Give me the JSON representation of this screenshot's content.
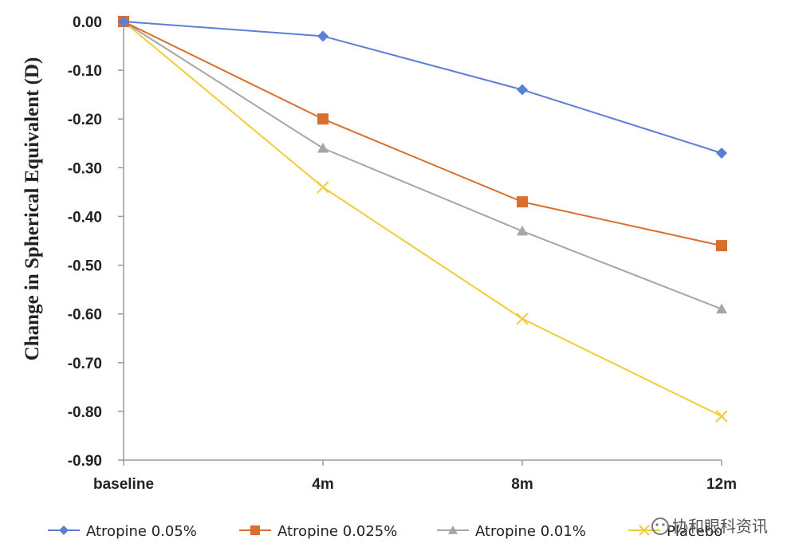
{
  "chart_data": {
    "type": "line",
    "categories": [
      "baseline",
      "4m",
      "8m",
      "12m"
    ],
    "ylabel": "Change in Spherical Equivalent (D)",
    "xlabel": "",
    "ylim": [
      -0.9,
      0.0
    ],
    "yticks": [
      "0.00",
      "-0.10",
      "-0.20",
      "-0.30",
      "-0.40",
      "-0.50",
      "-0.60",
      "-0.70",
      "-0.80",
      "-0.90"
    ],
    "ytick_values": [
      0.0,
      -0.1,
      -0.2,
      -0.3,
      -0.4,
      -0.5,
      -0.6,
      -0.7,
      -0.8,
      -0.9
    ],
    "legend_position": "bottom",
    "series": [
      {
        "name": "Atropine 0.05%",
        "color": "#5b7fd6",
        "marker": "diamond",
        "values": [
          0.0,
          -0.03,
          -0.14,
          -0.27
        ]
      },
      {
        "name": "Atropine 0.025%",
        "color": "#d86f2e",
        "marker": "square",
        "values": [
          0.0,
          -0.2,
          -0.37,
          -0.46
        ]
      },
      {
        "name": "Atropine 0.01%",
        "color": "#a6a6a6",
        "marker": "triangle",
        "values": [
          0.0,
          -0.26,
          -0.43,
          -0.59
        ]
      },
      {
        "name": "Placebo",
        "color": "#f0cc3c",
        "marker": "x",
        "values": [
          0.0,
          -0.34,
          -0.61,
          -0.81
        ]
      }
    ]
  },
  "watermark": {
    "text": "协和眼科资讯"
  }
}
